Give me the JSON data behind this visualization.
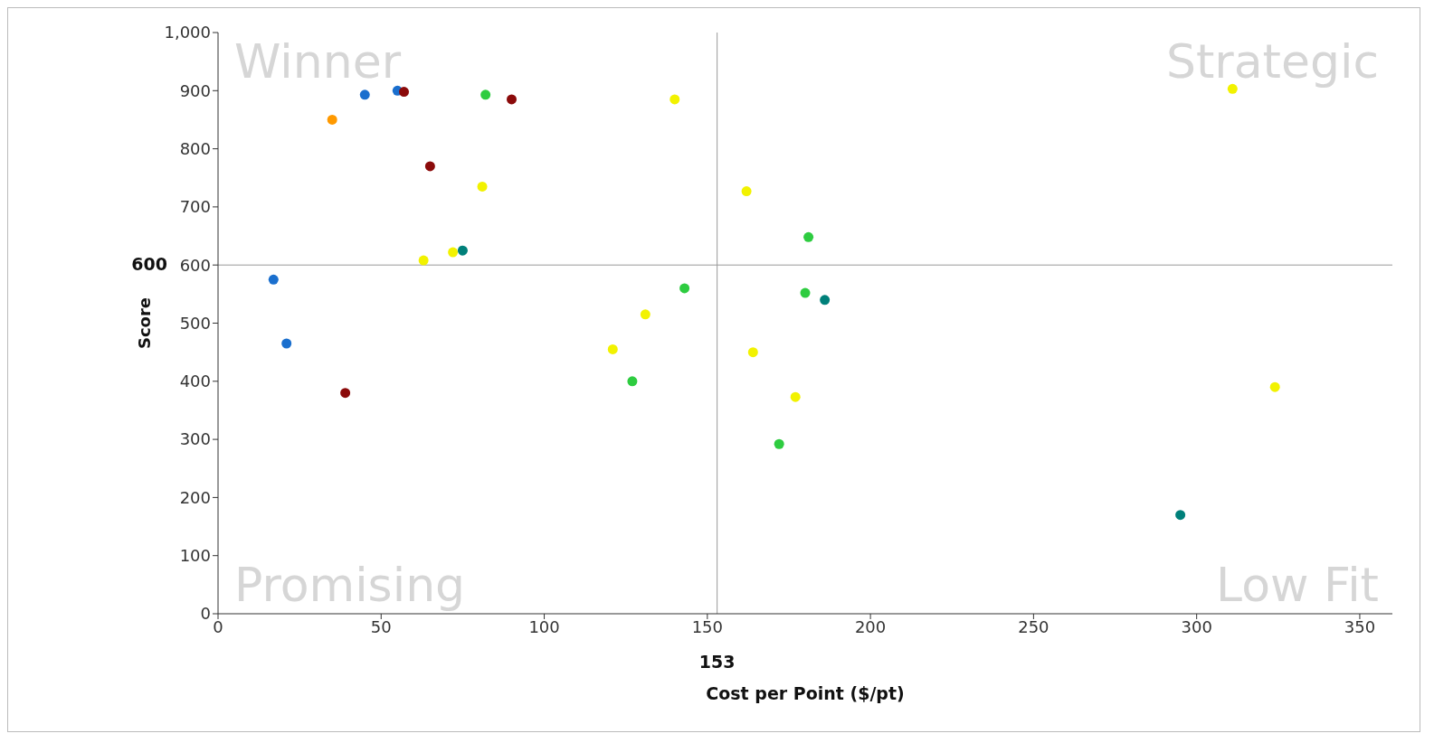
{
  "chart_data": {
    "type": "scatter",
    "xlabel": "Cost per Point ($/pt)",
    "ylabel": "Score",
    "annotations": [
      "Winner",
      "Strategic",
      "Promising",
      "Low Fit"
    ],
    "xlim": [
      0,
      360
    ],
    "xticks": [
      0,
      50,
      100,
      150,
      200,
      250,
      300,
      350
    ],
    "ylim": [
      0,
      1000
    ],
    "yticks": [
      0,
      100,
      200,
      300,
      400,
      500,
      600,
      700,
      800,
      900,
      {
        "value": 1000,
        "label": "1,000"
      }
    ],
    "grid": false,
    "marker": "circle",
    "ref_lines": [
      {
        "axis": "x",
        "value": 153,
        "label": "153",
        "color": "#999999"
      },
      {
        "axis": "y",
        "value": 600,
        "label": "600",
        "color": "#999999"
      }
    ],
    "series": [
      {
        "color": "#1a6fce",
        "x": [
          17,
          21,
          45,
          55
        ],
        "values": [
          575,
          465,
          893,
          900
        ]
      },
      {
        "color": "#8b0a0a",
        "x": [
          57,
          90,
          65,
          39
        ],
        "values": [
          898,
          885,
          770,
          380
        ]
      },
      {
        "color": "#2ecc40",
        "x": [
          82,
          143,
          127,
          181,
          180,
          172
        ],
        "values": [
          893,
          560,
          400,
          648,
          552,
          292
        ]
      },
      {
        "color": "#00807a",
        "x": [
          75,
          186,
          295
        ],
        "values": [
          625,
          540,
          170
        ]
      },
      {
        "color": "#f2f200",
        "x": [
          140,
          81,
          63,
          72,
          131,
          121,
          162,
          164,
          177,
          311,
          324
        ],
        "values": [
          885,
          735,
          608,
          622,
          515,
          455,
          727,
          450,
          373,
          903,
          390
        ]
      },
      {
        "color": "#ff9900",
        "x": [
          35
        ],
        "values": [
          850
        ]
      }
    ]
  }
}
